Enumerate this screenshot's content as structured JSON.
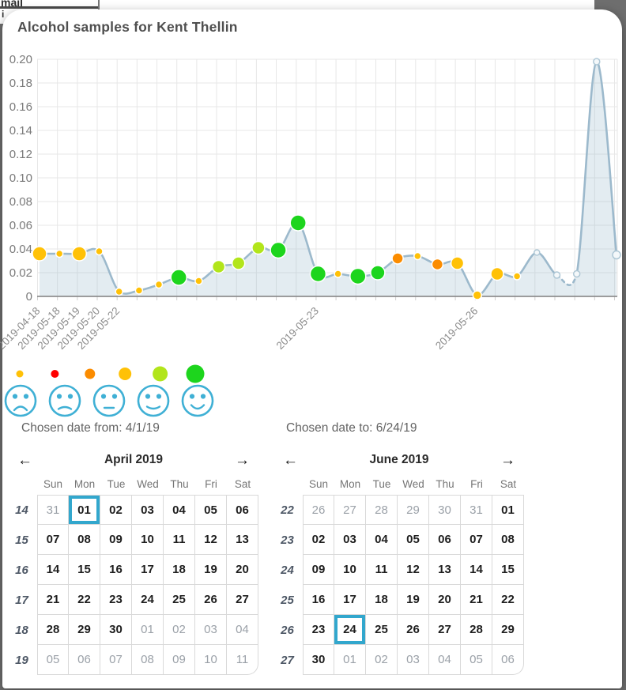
{
  "background": {
    "clipped_text": "mail",
    "partial_char": "i"
  },
  "modal": {
    "title": "Alcohol samples for Kent Thellin"
  },
  "chart_data": {
    "type": "area",
    "title": "Alcohol samples for Kent Thellin",
    "xlabel": "",
    "ylabel": "",
    "ylim": [
      0,
      0.2
    ],
    "grid": true,
    "ytick_labels": [
      "0",
      "0.02",
      "0.04",
      "0.06",
      "0.08",
      "0.10",
      "0.12",
      "0.14",
      "0.16",
      "0.18",
      "0.20"
    ],
    "x_tick_labels": [
      {
        "i": 0,
        "label": "2019-04-18"
      },
      {
        "i": 1,
        "label": "2019-05-18"
      },
      {
        "i": 2,
        "label": "2019-05-19"
      },
      {
        "i": 3,
        "label": "2019-05-20"
      },
      {
        "i": 4,
        "label": "2019-05-22"
      },
      {
        "i": 14,
        "label": "2019-05-23"
      },
      {
        "i": 22,
        "label": "2019-05-26"
      }
    ],
    "points": [
      {
        "v": 0.036,
        "c": "gold",
        "r": 9
      },
      {
        "v": 0.036,
        "c": "gold",
        "r": 4.5
      },
      {
        "v": 0.036,
        "c": "gold",
        "r": 9
      },
      {
        "v": 0.038,
        "c": "gold",
        "r": 4.5
      },
      {
        "v": 0.004,
        "c": "gold",
        "r": 4.5
      },
      {
        "v": 0.005,
        "c": "gold",
        "r": 4.5
      },
      {
        "v": 0.01,
        "c": "gold",
        "r": 4.5
      },
      {
        "v": 0.016,
        "c": "green",
        "r": 10
      },
      {
        "v": 0.013,
        "c": "gold",
        "r": 4.5
      },
      {
        "v": 0.025,
        "c": "ygreen",
        "r": 8
      },
      {
        "v": 0.028,
        "c": "ygreen",
        "r": 8
      },
      {
        "v": 0.041,
        "c": "ygreen",
        "r": 8
      },
      {
        "v": 0.039,
        "c": "green",
        "r": 10
      },
      {
        "v": 0.062,
        "c": "green",
        "r": 10
      },
      {
        "v": 0.019,
        "c": "green",
        "r": 10
      },
      {
        "v": 0.019,
        "c": "gold",
        "r": 4.5
      },
      {
        "v": 0.017,
        "c": "green",
        "r": 10
      },
      {
        "v": 0.02,
        "c": "green",
        "r": 9
      },
      {
        "v": 0.032,
        "c": "orange",
        "r": 7
      },
      {
        "v": 0.034,
        "c": "gold",
        "r": 4.5
      },
      {
        "v": 0.027,
        "c": "orange",
        "r": 7
      },
      {
        "v": 0.028,
        "c": "gold",
        "r": 8
      },
      {
        "v": 0.001,
        "c": "gold",
        "r": 5.5
      },
      {
        "v": 0.019,
        "c": "gold",
        "r": 8
      },
      {
        "v": 0.017,
        "c": "gold",
        "r": 4.5
      },
      {
        "v": 0.037,
        "c": "hollow",
        "r": 3.5
      },
      {
        "v": 0.018,
        "c": "hollow",
        "r": 4
      },
      {
        "v": 0.019,
        "c": "hollow",
        "r": 4
      },
      {
        "v": 0.198,
        "c": "hollow",
        "r": 4
      },
      {
        "v": 0.035,
        "c": "hollow",
        "r": 5
      }
    ],
    "dashed_segments": [
      [
        26,
        27
      ]
    ],
    "colors": {
      "gold": "#FFC107",
      "red": "#FF0000",
      "orange": "#FB8C00",
      "ygreen": "#B2E51B",
      "green": "#1DD51D",
      "hollow": "#F4F8FA",
      "hollow_stroke": "#AFC8D6",
      "line": "#9CB9CC",
      "area": "rgba(156,185,204,0.28)",
      "grid": "#E7E7E7",
      "axis": "#8F8F8F",
      "tick": "#CFCFCF",
      "tick_text": "#7A7A7A",
      "xlabel_text": "#8B8B8B"
    }
  },
  "legend": {
    "dots": [
      {
        "color_key": "gold",
        "r": 4.5
      },
      {
        "color_key": "red",
        "r": 5
      },
      {
        "color_key": "orange",
        "r": 6.5
      },
      {
        "color_key": "gold",
        "r": 8
      },
      {
        "color_key": "ygreen",
        "r": 9.5
      },
      {
        "color_key": "green",
        "r": 11.5
      }
    ],
    "faces": [
      "very-sad",
      "sad",
      "neutral",
      "slightly-happy",
      "happy"
    ],
    "face_color": "#3FB0D5"
  },
  "date_range": {
    "from_label": "Chosen date from: 4/1/19",
    "to_label": "Chosen date to: 6/24/19"
  },
  "nav": {
    "prev_icon": "←",
    "next_icon": "→"
  },
  "calendar_colors": {
    "selected_border": "#32A7CD"
  },
  "calendars": [
    {
      "title": "April 2019",
      "day_headers": [
        "Sun",
        "Mon",
        "Tue",
        "Wed",
        "Thu",
        "Fri",
        "Sat"
      ],
      "weeks": [
        {
          "num": "14",
          "days": [
            {
              "d": "31",
              "out": 1
            },
            {
              "d": "01",
              "sel": 1
            },
            {
              "d": "02"
            },
            {
              "d": "03"
            },
            {
              "d": "04"
            },
            {
              "d": "05"
            },
            {
              "d": "06"
            }
          ]
        },
        {
          "num": "15",
          "days": [
            {
              "d": "07"
            },
            {
              "d": "08"
            },
            {
              "d": "09"
            },
            {
              "d": "10"
            },
            {
              "d": "11"
            },
            {
              "d": "12"
            },
            {
              "d": "13"
            }
          ]
        },
        {
          "num": "16",
          "days": [
            {
              "d": "14"
            },
            {
              "d": "15"
            },
            {
              "d": "16"
            },
            {
              "d": "17"
            },
            {
              "d": "18"
            },
            {
              "d": "19"
            },
            {
              "d": "20"
            }
          ]
        },
        {
          "num": "17",
          "days": [
            {
              "d": "21"
            },
            {
              "d": "22"
            },
            {
              "d": "23"
            },
            {
              "d": "24"
            },
            {
              "d": "25"
            },
            {
              "d": "26"
            },
            {
              "d": "27"
            }
          ]
        },
        {
          "num": "18",
          "days": [
            {
              "d": "28"
            },
            {
              "d": "29"
            },
            {
              "d": "30"
            },
            {
              "d": "01",
              "out": 1
            },
            {
              "d": "02",
              "out": 1
            },
            {
              "d": "03",
              "out": 1
            },
            {
              "d": "04",
              "out": 1
            }
          ]
        },
        {
          "num": "19",
          "days": [
            {
              "d": "05",
              "out": 1
            },
            {
              "d": "06",
              "out": 1
            },
            {
              "d": "07",
              "out": 1
            },
            {
              "d": "08",
              "out": 1
            },
            {
              "d": "09",
              "out": 1
            },
            {
              "d": "10",
              "out": 1
            },
            {
              "d": "11",
              "out": 1
            }
          ]
        }
      ]
    },
    {
      "title": "June 2019",
      "day_headers": [
        "Sun",
        "Mon",
        "Tue",
        "Wed",
        "Thu",
        "Fri",
        "Sat"
      ],
      "weeks": [
        {
          "num": "22",
          "days": [
            {
              "d": "26",
              "out": 1
            },
            {
              "d": "27",
              "out": 1
            },
            {
              "d": "28",
              "out": 1
            },
            {
              "d": "29",
              "out": 1
            },
            {
              "d": "30",
              "out": 1
            },
            {
              "d": "31",
              "out": 1
            },
            {
              "d": "01"
            }
          ]
        },
        {
          "num": "23",
          "days": [
            {
              "d": "02"
            },
            {
              "d": "03"
            },
            {
              "d": "04"
            },
            {
              "d": "05"
            },
            {
              "d": "06"
            },
            {
              "d": "07"
            },
            {
              "d": "08"
            }
          ]
        },
        {
          "num": "24",
          "days": [
            {
              "d": "09"
            },
            {
              "d": "10"
            },
            {
              "d": "11"
            },
            {
              "d": "12"
            },
            {
              "d": "13"
            },
            {
              "d": "14"
            },
            {
              "d": "15"
            }
          ]
        },
        {
          "num": "25",
          "days": [
            {
              "d": "16"
            },
            {
              "d": "17"
            },
            {
              "d": "18"
            },
            {
              "d": "19"
            },
            {
              "d": "20"
            },
            {
              "d": "21"
            },
            {
              "d": "22"
            }
          ]
        },
        {
          "num": "26",
          "days": [
            {
              "d": "23"
            },
            {
              "d": "24",
              "sel": 1
            },
            {
              "d": "25"
            },
            {
              "d": "26"
            },
            {
              "d": "27"
            },
            {
              "d": "28"
            },
            {
              "d": "29"
            }
          ]
        },
        {
          "num": "27",
          "days": [
            {
              "d": "30"
            },
            {
              "d": "01",
              "out": 1
            },
            {
              "d": "02",
              "out": 1
            },
            {
              "d": "03",
              "out": 1
            },
            {
              "d": "04",
              "out": 1
            },
            {
              "d": "05",
              "out": 1
            },
            {
              "d": "06",
              "out": 1
            }
          ]
        }
      ]
    }
  ]
}
